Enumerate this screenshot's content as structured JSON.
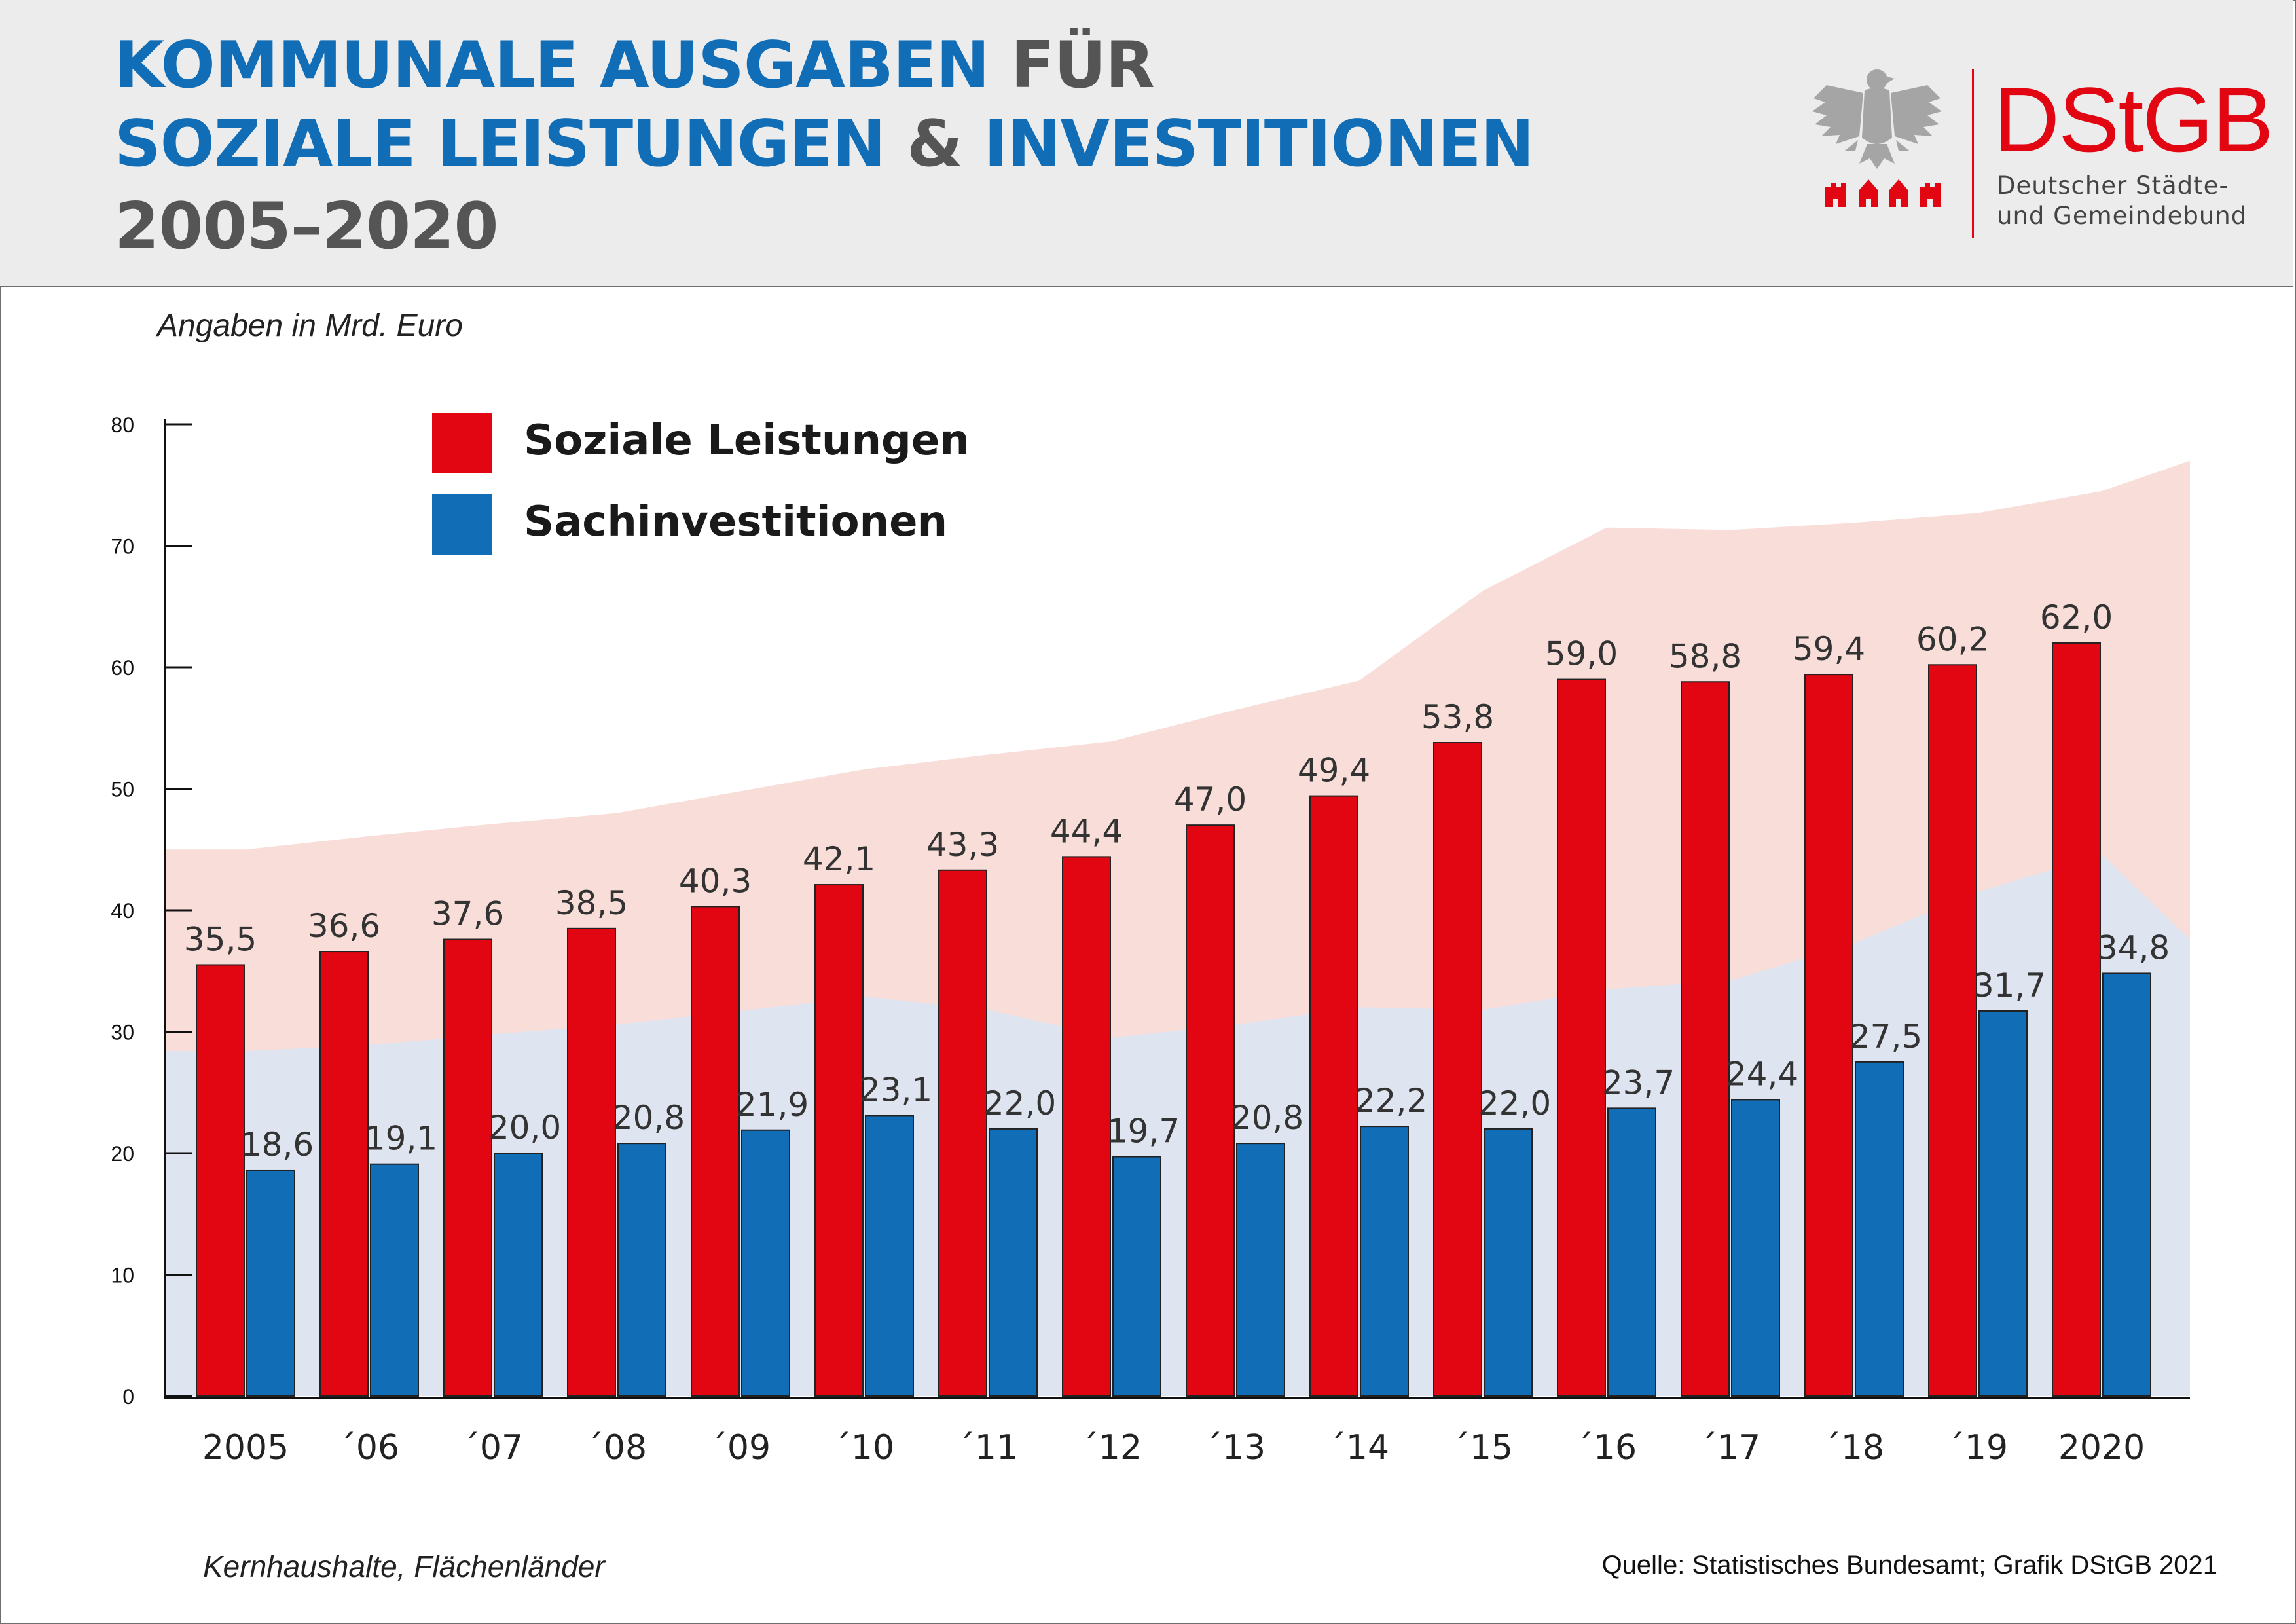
{
  "header": {
    "title_line1_blue": "KOMMUNALE AUSGABEN",
    "title_line1_grey": "FÜR",
    "title_line2_blue1": "SOZIALE LEISTUNGEN",
    "title_line2_grey": "&",
    "title_line2_blue2": "INVESTITIONEN",
    "title_line3": "2005–2020"
  },
  "logo": {
    "name": "DStGB",
    "subtitle_line1": "Deutscher Städte-",
    "subtitle_line2": "und Gemeindebund"
  },
  "unit_note": "Angaben in Mrd. Euro",
  "footer": {
    "left": "Kernhaushalte, Flächenländer",
    "right": "Quelle: Statistisches Bundesamt; Grafik DStGB 2021"
  },
  "colors": {
    "red": "#e20613",
    "blue": "#116db5",
    "red_area": "#f9ddd8",
    "blue_area": "#dfe4f1",
    "title_blue": "#116db5",
    "title_grey": "#555555"
  },
  "chart_data": {
    "type": "bar",
    "title": "Kommunale Ausgaben für soziale Leistungen & Investitionen 2005–2020",
    "ylabel": "Angaben in Mrd. Euro",
    "xlabel": "",
    "ylim": [
      0,
      80
    ],
    "yticks": [
      0,
      10,
      20,
      30,
      40,
      50,
      60,
      70,
      80
    ],
    "categories": [
      "2005",
      "´06",
      "´07",
      "´08",
      "´09",
      "´10",
      "´11",
      "´12",
      "´13",
      "´14",
      "´15",
      "´16",
      "´17",
      "´18",
      "´19",
      "2020"
    ],
    "series": [
      {
        "name": "Soziale Leistungen",
        "color": "#e20613",
        "values": [
          35.5,
          36.6,
          37.6,
          38.5,
          40.3,
          42.1,
          43.3,
          44.4,
          47.0,
          49.4,
          53.8,
          59.0,
          58.8,
          59.4,
          60.2,
          62.0
        ],
        "labels": [
          "35,5",
          "36,6",
          "37,6",
          "38,5",
          "40,3",
          "42,1",
          "43,3",
          "44,4",
          "47,0",
          "49,4",
          "53,8",
          "59,0",
          "58,8",
          "59,4",
          "60,2",
          "62,0"
        ]
      },
      {
        "name": "Sachinvestitionen",
        "color": "#116db5",
        "values": [
          18.6,
          19.1,
          20.0,
          20.8,
          21.9,
          23.1,
          22.0,
          19.7,
          20.8,
          22.2,
          22.0,
          23.7,
          24.4,
          27.5,
          31.7,
          34.8
        ],
        "labels": [
          "18,6",
          "19,1",
          "20,0",
          "20,8",
          "21,9",
          "23,1",
          "22,0",
          "19,7",
          "20,8",
          "22,2",
          "22,0",
          "23,7",
          "24,4",
          "27,5",
          "31,7",
          "34,8"
        ]
      }
    ],
    "legend": [
      {
        "label": "Soziale Leistungen",
        "color": "#e20613"
      },
      {
        "label": "Sachinvestitionen",
        "color": "#116db5"
      }
    ],
    "legend_position": "top-left",
    "background_areas": "decorative shaded bands following each series trend",
    "grid": false
  }
}
